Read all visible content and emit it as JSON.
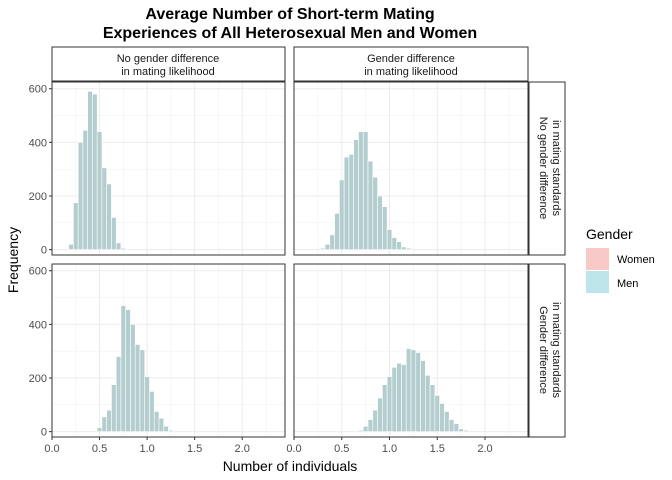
{
  "chart_data": {
    "type": "bar",
    "subtype": "histogram-facet-grid",
    "title_lines": [
      "Average Number of Short-term Mating",
      "Experiences of All Heterosexual Men and Women"
    ],
    "xlabel": "Number of individuals",
    "ylabel": "Frequency",
    "xlim": [
      0,
      2.45
    ],
    "ylim": [
      -20,
      625
    ],
    "x_ticks": [
      0.0,
      0.5,
      1.0,
      1.5,
      2.0
    ],
    "x_tick_labels": [
      "0.0",
      "0.5",
      "1.0",
      "1.5",
      "2.0"
    ],
    "y_ticks": [
      0,
      200,
      400,
      600
    ],
    "y_tick_labels": [
      "0",
      "200",
      "400",
      "600"
    ],
    "bin_width": 0.05,
    "grid": true,
    "column_strips": [
      [
        "No gender difference",
        "in mating likelihood"
      ],
      [
        "Gender difference",
        "in mating likelihood"
      ]
    ],
    "row_strips": [
      [
        "No gender difference",
        "in mating standards"
      ],
      [
        "Gender difference",
        "in mating standards"
      ]
    ],
    "legend": {
      "title": "Gender",
      "position": "right",
      "items": [
        {
          "label": "Women",
          "color": "#f8c9c6"
        },
        {
          "label": "Men",
          "color": "#bde5ea"
        }
      ]
    },
    "bar_color": "#b4cdcf",
    "bar_outline": "#ffffff",
    "panels": [
      {
        "row": 0,
        "col": 0,
        "bins": [
          [
            0.2,
            20
          ],
          [
            0.25,
            175
          ],
          [
            0.3,
            400
          ],
          [
            0.35,
            445
          ],
          [
            0.4,
            590
          ],
          [
            0.45,
            580
          ],
          [
            0.5,
            440
          ],
          [
            0.55,
            305
          ],
          [
            0.6,
            245
          ],
          [
            0.65,
            120
          ],
          [
            0.7,
            25
          ],
          [
            0.75,
            5
          ]
        ]
      },
      {
        "row": 0,
        "col": 1,
        "bins": [
          [
            0.3,
            5
          ],
          [
            0.35,
            20
          ],
          [
            0.4,
            55
          ],
          [
            0.45,
            135
          ],
          [
            0.5,
            260
          ],
          [
            0.55,
            345
          ],
          [
            0.6,
            355
          ],
          [
            0.65,
            410
          ],
          [
            0.7,
            440
          ],
          [
            0.75,
            440
          ],
          [
            0.8,
            330
          ],
          [
            0.85,
            270
          ],
          [
            0.9,
            200
          ],
          [
            0.95,
            160
          ],
          [
            1.0,
            75
          ],
          [
            1.05,
            45
          ],
          [
            1.1,
            30
          ],
          [
            1.15,
            10
          ],
          [
            1.2,
            5
          ]
        ]
      },
      {
        "row": 1,
        "col": 0,
        "bins": [
          [
            0.5,
            15
          ],
          [
            0.55,
            55
          ],
          [
            0.6,
            80
          ],
          [
            0.65,
            175
          ],
          [
            0.7,
            280
          ],
          [
            0.75,
            470
          ],
          [
            0.8,
            455
          ],
          [
            0.85,
            400
          ],
          [
            0.9,
            325
          ],
          [
            0.95,
            305
          ],
          [
            1.0,
            205
          ],
          [
            1.05,
            150
          ],
          [
            1.1,
            75
          ],
          [
            1.15,
            50
          ],
          [
            1.2,
            20
          ],
          [
            1.25,
            5
          ]
        ]
      },
      {
        "row": 1,
        "col": 1,
        "bins": [
          [
            0.7,
            5
          ],
          [
            0.75,
            20
          ],
          [
            0.8,
            45
          ],
          [
            0.85,
            80
          ],
          [
            0.9,
            125
          ],
          [
            0.95,
            175
          ],
          [
            1.0,
            205
          ],
          [
            1.05,
            240
          ],
          [
            1.1,
            255
          ],
          [
            1.15,
            250
          ],
          [
            1.2,
            310
          ],
          [
            1.25,
            305
          ],
          [
            1.3,
            295
          ],
          [
            1.35,
            265
          ],
          [
            1.4,
            210
          ],
          [
            1.45,
            175
          ],
          [
            1.5,
            135
          ],
          [
            1.55,
            105
          ],
          [
            1.6,
            75
          ],
          [
            1.65,
            45
          ],
          [
            1.7,
            30
          ],
          [
            1.75,
            10
          ],
          [
            1.8,
            5
          ]
        ]
      }
    ]
  }
}
